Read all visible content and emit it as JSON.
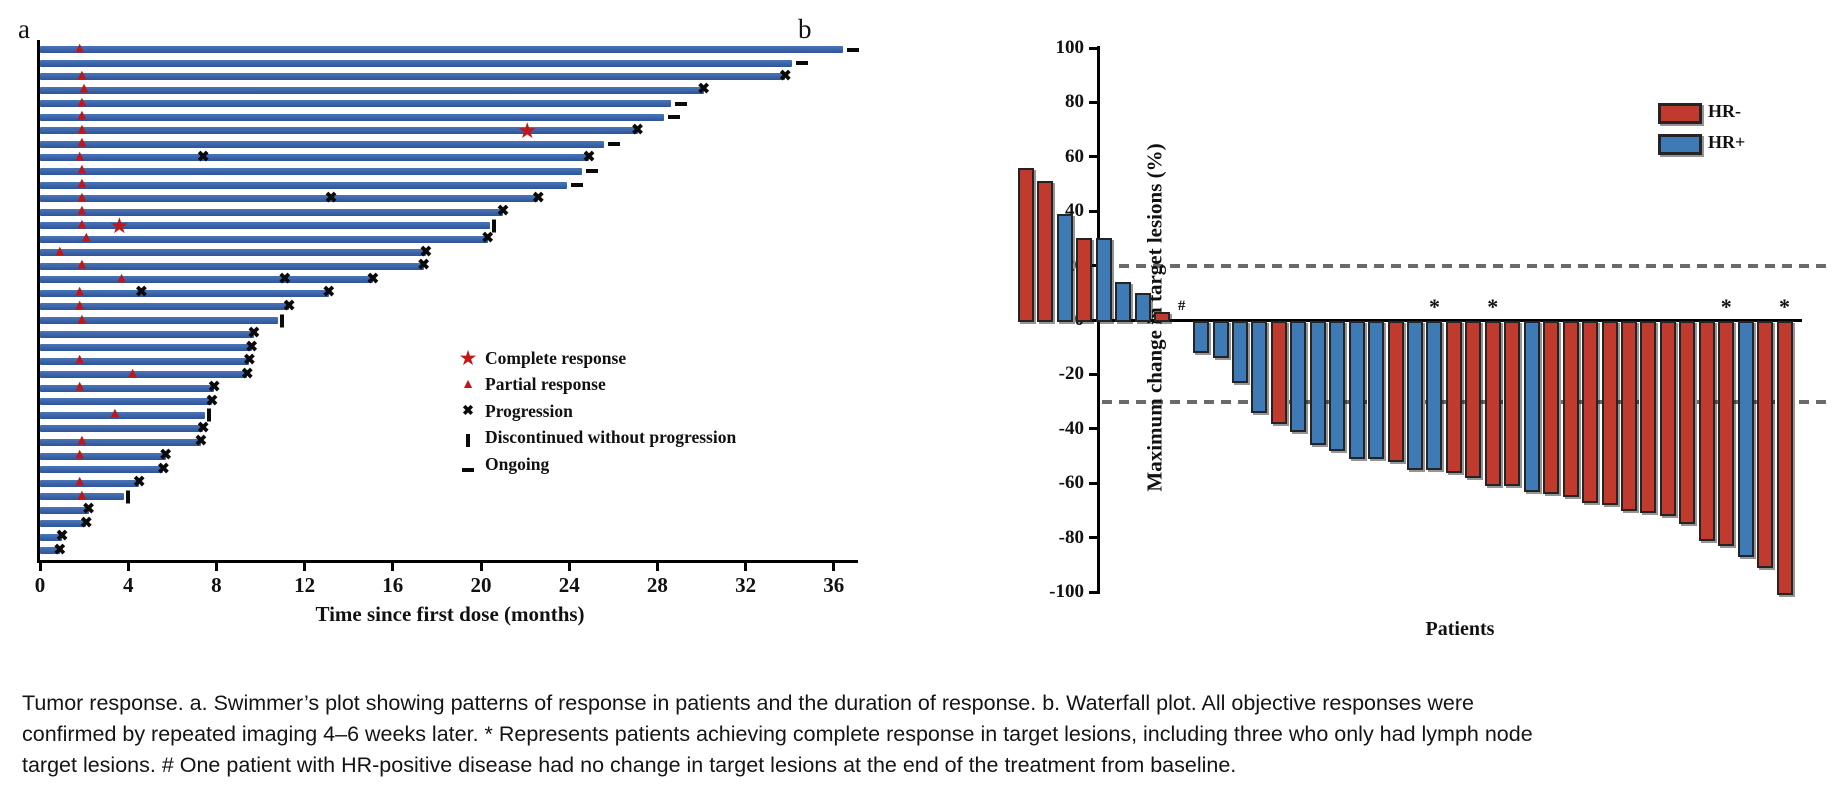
{
  "figure": {
    "panel_a_letter": "a",
    "panel_b_letter": "b"
  },
  "caption": "Tumor response. a. Swimmer’s plot showing patterns of response in patients and the duration of response. b. Waterfall plot. All objective responses were confirmed by repeated imaging 4–6 weeks later. * Represents patients achieving complete response in target lesions, including three who only had lymph node target lesions. # One patient with HR-positive disease had no change in target lesions at the end of the treatment from baseline.",
  "chart_data": [
    {
      "id": "swimmer",
      "type": "bar",
      "orientation": "horizontal",
      "title": "",
      "xlabel": "Time since first dose (months)",
      "ylabel": "",
      "xlim": [
        0,
        37.5
      ],
      "x_ticks": [
        0,
        4,
        8,
        12,
        16,
        20,
        24,
        28,
        32,
        36
      ],
      "grid": false,
      "bar_color": "#3a63a8",
      "marker_colors": {
        "complete_response": "#c01818",
        "partial_response": "#c01818",
        "progression": "#0a0a0a",
        "discontinued": "#0a0a0a",
        "ongoing": "#0a0a0a"
      },
      "legend_position": "inside-right",
      "legend": [
        {
          "symbol": "star",
          "label": "Complete response"
        },
        {
          "symbol": "triangle",
          "label": "Partial response"
        },
        {
          "symbol": "cross",
          "label": "Progression"
        },
        {
          "symbol": "vbar",
          "label": "Discontinued without progression"
        },
        {
          "symbol": "dash",
          "label": "Ongoing"
        }
      ],
      "patients": [
        {
          "duration": 36.4,
          "events": [
            {
              "type": "partial_response",
              "t": 1.8
            }
          ],
          "end": "ongoing"
        },
        {
          "duration": 34.1,
          "events": [],
          "end": "ongoing"
        },
        {
          "duration": 33.8,
          "events": [
            {
              "type": "partial_response",
              "t": 1.9
            }
          ],
          "end": "progression"
        },
        {
          "duration": 30.1,
          "events": [
            {
              "type": "partial_response",
              "t": 2.0
            }
          ],
          "end": "progression"
        },
        {
          "duration": 28.6,
          "events": [
            {
              "type": "partial_response",
              "t": 1.9
            }
          ],
          "end": "ongoing"
        },
        {
          "duration": 28.3,
          "events": [
            {
              "type": "partial_response",
              "t": 1.9
            }
          ],
          "end": "ongoing"
        },
        {
          "duration": 27.1,
          "events": [
            {
              "type": "partial_response",
              "t": 1.9
            },
            {
              "type": "complete_response",
              "t": 22.1
            }
          ],
          "end": "progression"
        },
        {
          "duration": 25.6,
          "events": [
            {
              "type": "partial_response",
              "t": 1.9
            }
          ],
          "end": "ongoing"
        },
        {
          "duration": 24.9,
          "events": [
            {
              "type": "partial_response",
              "t": 1.8
            },
            {
              "type": "progression",
              "t": 7.4
            }
          ],
          "end": "progression"
        },
        {
          "duration": 24.6,
          "events": [
            {
              "type": "partial_response",
              "t": 1.9
            }
          ],
          "end": "ongoing"
        },
        {
          "duration": 23.9,
          "events": [
            {
              "type": "partial_response",
              "t": 1.9
            }
          ],
          "end": "ongoing"
        },
        {
          "duration": 22.6,
          "events": [
            {
              "type": "partial_response",
              "t": 1.9
            },
            {
              "type": "progression",
              "t": 13.2
            }
          ],
          "end": "progression"
        },
        {
          "duration": 21.0,
          "events": [
            {
              "type": "partial_response",
              "t": 1.9
            }
          ],
          "end": "progression"
        },
        {
          "duration": 20.4,
          "events": [
            {
              "type": "partial_response",
              "t": 1.9
            },
            {
              "type": "complete_response",
              "t": 3.6
            }
          ],
          "end": "discontinued"
        },
        {
          "duration": 20.3,
          "events": [
            {
              "type": "partial_response",
              "t": 2.1
            }
          ],
          "end": "progression"
        },
        {
          "duration": 17.5,
          "events": [
            {
              "type": "partial_response",
              "t": 0.9
            }
          ],
          "end": "progression"
        },
        {
          "duration": 17.4,
          "events": [
            {
              "type": "partial_response",
              "t": 1.9
            }
          ],
          "end": "progression"
        },
        {
          "duration": 15.1,
          "events": [
            {
              "type": "partial_response",
              "t": 3.7
            },
            {
              "type": "progression",
              "t": 11.1
            }
          ],
          "end": "progression"
        },
        {
          "duration": 13.1,
          "events": [
            {
              "type": "partial_response",
              "t": 1.8
            },
            {
              "type": "progression",
              "t": 4.6
            }
          ],
          "end": "progression"
        },
        {
          "duration": 11.3,
          "events": [
            {
              "type": "partial_response",
              "t": 1.8
            }
          ],
          "end": "progression"
        },
        {
          "duration": 10.8,
          "events": [
            {
              "type": "partial_response",
              "t": 1.9
            }
          ],
          "end": "discontinued"
        },
        {
          "duration": 9.7,
          "events": [],
          "end": "progression"
        },
        {
          "duration": 9.6,
          "events": [],
          "end": "progression"
        },
        {
          "duration": 9.5,
          "events": [
            {
              "type": "partial_response",
              "t": 1.8
            }
          ],
          "end": "progression"
        },
        {
          "duration": 9.4,
          "events": [
            {
              "type": "partial_response",
              "t": 4.2
            }
          ],
          "end": "progression"
        },
        {
          "duration": 7.9,
          "events": [
            {
              "type": "partial_response",
              "t": 1.8
            }
          ],
          "end": "progression"
        },
        {
          "duration": 7.8,
          "events": [],
          "end": "progression"
        },
        {
          "duration": 7.5,
          "events": [
            {
              "type": "partial_response",
              "t": 3.4
            }
          ],
          "end": "discontinued"
        },
        {
          "duration": 7.4,
          "events": [],
          "end": "progression"
        },
        {
          "duration": 7.3,
          "events": [
            {
              "type": "partial_response",
              "t": 1.9
            }
          ],
          "end": "progression"
        },
        {
          "duration": 5.7,
          "events": [
            {
              "type": "partial_response",
              "t": 1.8
            }
          ],
          "end": "progression"
        },
        {
          "duration": 5.6,
          "events": [],
          "end": "progression"
        },
        {
          "duration": 4.5,
          "events": [
            {
              "type": "partial_response",
              "t": 1.8
            }
          ],
          "end": "progression"
        },
        {
          "duration": 3.8,
          "events": [
            {
              "type": "partial_response",
              "t": 1.9
            }
          ],
          "end": "discontinued"
        },
        {
          "duration": 2.2,
          "events": [],
          "end": "progression"
        },
        {
          "duration": 2.1,
          "events": [],
          "end": "progression"
        },
        {
          "duration": 1.0,
          "events": [],
          "end": "progression"
        },
        {
          "duration": 0.9,
          "events": [],
          "end": "progression"
        }
      ]
    },
    {
      "id": "waterfall",
      "type": "bar",
      "orientation": "vertical",
      "title": "",
      "xlabel": "Patients",
      "ylabel": "Maximum change in target lesions (%)",
      "ylim": [
        -100,
        100
      ],
      "y_ticks": [
        100,
        80,
        60,
        40,
        20,
        0,
        -20,
        -40,
        -60,
        -80,
        -100
      ],
      "grid": false,
      "reference_lines": [
        20,
        -30
      ],
      "reference_line_color": "#6a6a6a",
      "legend_position": "inside-right",
      "legend": [
        {
          "label": "HR-",
          "color": "#c03a2e"
        },
        {
          "label": "HR+",
          "color": "#3e7ab6"
        }
      ],
      "group_colors": {
        "HR-": "#c03a2e",
        "HR+": "#3e7ab6"
      },
      "patients": [
        {
          "value": 56,
          "group": "HR-",
          "flag": ""
        },
        {
          "value": 51,
          "group": "HR-",
          "flag": ""
        },
        {
          "value": 39,
          "group": "HR+",
          "flag": ""
        },
        {
          "value": 30,
          "group": "HR-",
          "flag": ""
        },
        {
          "value": 30,
          "group": "HR+",
          "flag": ""
        },
        {
          "value": 14,
          "group": "HR+",
          "flag": ""
        },
        {
          "value": 10,
          "group": "HR+",
          "flag": ""
        },
        {
          "value": 3,
          "group": "HR-",
          "flag": ""
        },
        {
          "value": 0,
          "group": "HR+",
          "flag": "#"
        },
        {
          "value": -11,
          "group": "HR+",
          "flag": ""
        },
        {
          "value": -13,
          "group": "HR+",
          "flag": ""
        },
        {
          "value": -22,
          "group": "HR+",
          "flag": ""
        },
        {
          "value": -33,
          "group": "HR+",
          "flag": ""
        },
        {
          "value": -37,
          "group": "HR-",
          "flag": ""
        },
        {
          "value": -40,
          "group": "HR+",
          "flag": ""
        },
        {
          "value": -45,
          "group": "HR+",
          "flag": ""
        },
        {
          "value": -47,
          "group": "HR+",
          "flag": ""
        },
        {
          "value": -50,
          "group": "HR+",
          "flag": ""
        },
        {
          "value": -50,
          "group": "HR+",
          "flag": ""
        },
        {
          "value": -51,
          "group": "HR-",
          "flag": ""
        },
        {
          "value": -54,
          "group": "HR+",
          "flag": ""
        },
        {
          "value": -54,
          "group": "HR+",
          "flag": "*"
        },
        {
          "value": -55,
          "group": "HR-",
          "flag": ""
        },
        {
          "value": -57,
          "group": "HR-",
          "flag": ""
        },
        {
          "value": -60,
          "group": "HR-",
          "flag": "*"
        },
        {
          "value": -60,
          "group": "HR-",
          "flag": ""
        },
        {
          "value": -62,
          "group": "HR+",
          "flag": ""
        },
        {
          "value": -63,
          "group": "HR-",
          "flag": ""
        },
        {
          "value": -64,
          "group": "HR-",
          "flag": ""
        },
        {
          "value": -66,
          "group": "HR-",
          "flag": ""
        },
        {
          "value": -67,
          "group": "HR-",
          "flag": ""
        },
        {
          "value": -69,
          "group": "HR-",
          "flag": ""
        },
        {
          "value": -70,
          "group": "HR-",
          "flag": ""
        },
        {
          "value": -71,
          "group": "HR-",
          "flag": ""
        },
        {
          "value": -74,
          "group": "HR-",
          "flag": ""
        },
        {
          "value": -80,
          "group": "HR-",
          "flag": ""
        },
        {
          "value": -82,
          "group": "HR-",
          "flag": "*"
        },
        {
          "value": -86,
          "group": "HR+",
          "flag": ""
        },
        {
          "value": -90,
          "group": "HR-",
          "flag": ""
        },
        {
          "value": -100,
          "group": "HR-",
          "flag": "*"
        }
      ]
    }
  ]
}
